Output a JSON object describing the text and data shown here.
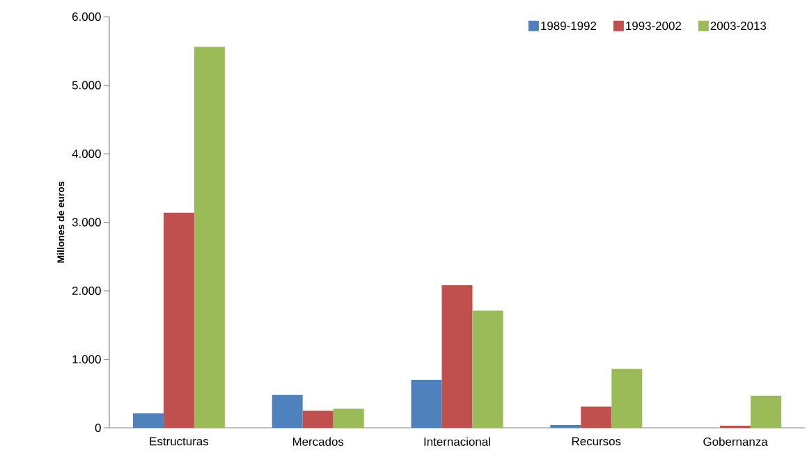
{
  "chart_data": {
    "type": "bar",
    "ylabel": "Millones de euros",
    "categories": [
      "Estructuras",
      "Mercados",
      "Internacional",
      "Recursos",
      "Gobernanza"
    ],
    "series": [
      {
        "name": "1989-1992",
        "color": "#4f81bd",
        "values": [
          210,
          480,
          700,
          40,
          0
        ]
      },
      {
        "name": "1993-2002",
        "color": "#c0504d",
        "values": [
          3140,
          250,
          2080,
          310,
          30
        ]
      },
      {
        "name": "2003-2013",
        "color": "#9bbb59",
        "values": [
          5560,
          280,
          1710,
          860,
          470
        ]
      }
    ],
    "ylim": [
      0,
      6000
    ],
    "yticks": [
      0,
      {
        "value": 1000,
        "label": "1.000"
      },
      {
        "value": 2000,
        "label": "2.000"
      },
      {
        "value": 3000,
        "label": "3.000"
      },
      {
        "value": 4000,
        "label": "4.000"
      },
      {
        "value": 5000,
        "label": "5.000"
      },
      {
        "value": 6000,
        "label": "6.000"
      }
    ],
    "grid": false,
    "legend": "top right"
  }
}
